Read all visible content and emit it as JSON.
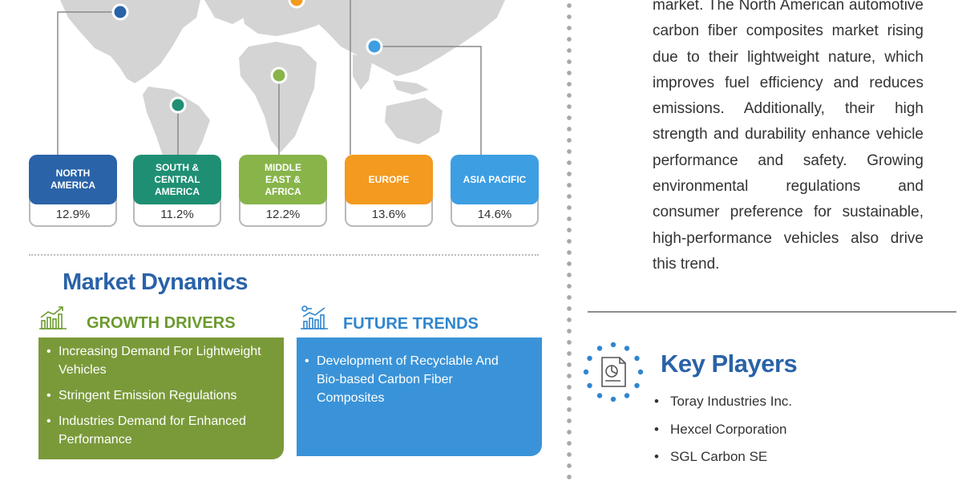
{
  "regions": [
    {
      "name": "NORTH AMERICA",
      "value": "12.9%",
      "color": "#2a63a8"
    },
    {
      "name": "SOUTH & CENTRAL AMERICA",
      "value": "11.2%",
      "color": "#1f8f73"
    },
    {
      "name": "MIDDLE EAST & AFRICA",
      "value": "12.2%",
      "color": "#88b44a"
    },
    {
      "name": "EUROPE",
      "value": "13.6%",
      "color": "#f39a1f"
    },
    {
      "name": "ASIA PACIFIC",
      "value": "14.6%",
      "color": "#3d9ee2"
    }
  ],
  "market_dynamics": {
    "title": "Market Dynamics",
    "growth_drivers": {
      "title": "GROWTH DRIVERS",
      "icon": "growth-chart-icon",
      "items": [
        "Increasing Demand For Lightweight Vehicles",
        "Stringent Emission Regulations",
        "Industries Demand for Enhanced Performance"
      ]
    },
    "future_trends": {
      "title": "FUTURE TRENDS",
      "icon": "trends-chart-icon",
      "items": [
        "Development of Recyclable And Bio-based Carbon Fiber Composites"
      ]
    }
  },
  "description": "market. The North American automotive carbon fiber composites market rising due to their lightweight nature, which improves fuel efficiency and reduces emissions. Additionally, their high strength and durability enhance vehicle performance and safety. Growing environmental regulations and consumer preference for sustainable, high-performance vehicles also drive this trend.",
  "key_players": {
    "title": "Key Players",
    "icon": "key-players-icon",
    "items": [
      "Toray Industries Inc.",
      "Hexcel Corporation",
      "SGL Carbon SE"
    ]
  },
  "colors": {
    "title_blue": "#2a62a8",
    "growth_green": "#7a9a3a",
    "trends_blue": "#3a93d8"
  }
}
